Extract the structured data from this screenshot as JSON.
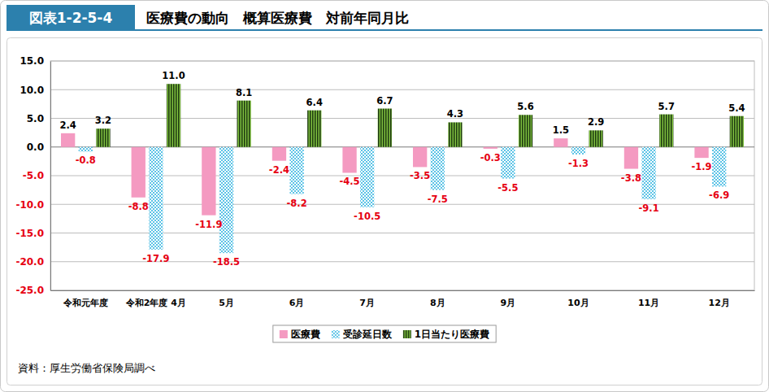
{
  "chart_data": {
    "type": "bar",
    "title": "医療費の動向　概算医療費　対前年同月比",
    "annotations": [
      "図表1-2-5-4",
      "資料：厚生労働省保険局調べ"
    ],
    "categories": [
      "令和元年度",
      "令和2年度 4月",
      "5月",
      "6月",
      "7月",
      "8月",
      "9月",
      "10月",
      "11月",
      "12月"
    ],
    "series": [
      {
        "name": "医療費",
        "color": "#f49ac1",
        "values": [
          2.4,
          -8.8,
          -11.9,
          -2.4,
          -4.5,
          -3.5,
          -0.3,
          1.5,
          -3.8,
          -1.9
        ],
        "value_labels": [
          "2.4",
          "-8.8",
          "-11.9",
          "-2.4",
          "-4.5",
          "-3.5",
          "-0.3",
          "1.5",
          "-3.8",
          "-1.9"
        ]
      },
      {
        "name": "受診延日数",
        "color": "#5cc3e6",
        "values": [
          -0.8,
          -17.9,
          -18.5,
          -8.2,
          -10.5,
          -7.5,
          -5.5,
          -1.3,
          -9.1,
          -6.9
        ],
        "value_labels": [
          "-0.8",
          "-17.9",
          "-18.5",
          "-8.2",
          "-10.5",
          "-7.5",
          "-5.5",
          "-1.3",
          "-9.1",
          "-6.9"
        ]
      },
      {
        "name": "1日当たり医療費",
        "color": "#7fbf3f",
        "values": [
          3.2,
          11.0,
          8.1,
          6.4,
          6.7,
          4.3,
          5.6,
          2.9,
          5.7,
          5.4
        ],
        "value_labels": [
          "3.2",
          "11.0",
          "8.1",
          "6.4",
          "6.7",
          "4.3",
          "5.6",
          "2.9",
          "5.7",
          "5.4"
        ]
      }
    ],
    "ylim": [
      -25,
      15
    ],
    "yticks": [
      {
        "value": 15,
        "label": "15.0"
      },
      {
        "value": 10,
        "label": "10.0"
      },
      {
        "value": 5,
        "label": "5.0"
      },
      {
        "value": 0,
        "label": "0.0"
      },
      {
        "value": -5,
        "label": "-5.0"
      },
      {
        "value": -10,
        "label": "-10.0"
      },
      {
        "value": -15,
        "label": "-15.0"
      },
      {
        "value": -20,
        "label": "-20.0"
      },
      {
        "value": -25,
        "label": "-25.0"
      }
    ],
    "grid": true,
    "data_labels": true,
    "legend": "bottom"
  }
}
